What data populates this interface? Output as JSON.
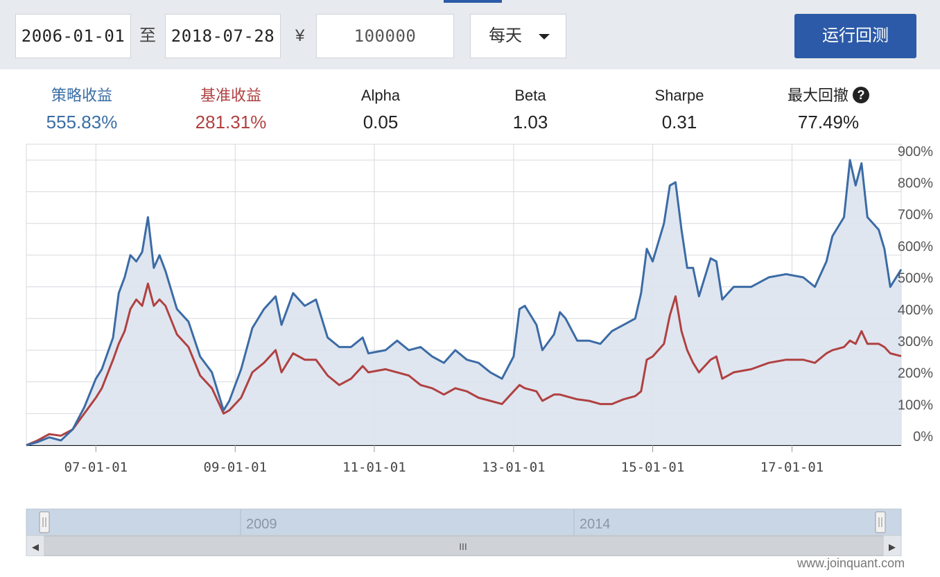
{
  "toolbar": {
    "start_date": "2006-01-01",
    "to_label": "至",
    "end_date": "2018-07-28",
    "currency_symbol": "¥",
    "capital": "100000",
    "frequency": "每天",
    "run_label": "运行回测"
  },
  "stats": [
    {
      "label": "策略收益",
      "value": "555.83%",
      "color": "#3a6ea5"
    },
    {
      "label": "基准收益",
      "value": "281.31%",
      "color": "#b04141"
    },
    {
      "label": "Alpha",
      "value": "0.05",
      "color": "#222222"
    },
    {
      "label": "Beta",
      "value": "1.03",
      "color": "#222222"
    },
    {
      "label": "Sharpe",
      "value": "0.31",
      "color": "#222222"
    },
    {
      "label": "最大回撤",
      "value": "77.49%",
      "color": "#222222"
    }
  ],
  "help_icon": "help-icon",
  "chart_data": {
    "type": "area",
    "x_range": [
      "2006-01-01",
      "2018-07-28"
    ],
    "x_ticks": [
      "07-01-01",
      "09-01-01",
      "11-01-01",
      "13-01-01",
      "15-01-01",
      "17-01-01"
    ],
    "y_ticks": [
      "0%",
      "100%",
      "200%",
      "300%",
      "400%",
      "500%",
      "600%",
      "700%",
      "800%",
      "900%"
    ],
    "ylim": [
      0,
      950
    ],
    "grid": true,
    "colors": {
      "strategy": "#3b6ba5",
      "benchmark": "#b04141",
      "fill": "#dce3ee"
    },
    "series": [
      {
        "key": "strategy",
        "points": [
          [
            "2006-01-01",
            0
          ],
          [
            "2006-03-01",
            10
          ],
          [
            "2006-05-01",
            25
          ],
          [
            "2006-07-01",
            15
          ],
          [
            "2006-09-01",
            50
          ],
          [
            "2006-11-01",
            120
          ],
          [
            "2007-01-01",
            210
          ],
          [
            "2007-02-01",
            240
          ],
          [
            "2007-04-01",
            340
          ],
          [
            "2007-05-01",
            480
          ],
          [
            "2007-06-01",
            530
          ],
          [
            "2007-07-01",
            600
          ],
          [
            "2007-08-01",
            580
          ],
          [
            "2007-09-01",
            610
          ],
          [
            "2007-10-01",
            720
          ],
          [
            "2007-11-01",
            560
          ],
          [
            "2007-12-01",
            600
          ],
          [
            "2008-01-01",
            550
          ],
          [
            "2008-03-01",
            430
          ],
          [
            "2008-05-01",
            390
          ],
          [
            "2008-07-01",
            280
          ],
          [
            "2008-09-01",
            230
          ],
          [
            "2008-11-01",
            110
          ],
          [
            "2008-12-01",
            140
          ],
          [
            "2009-02-01",
            240
          ],
          [
            "2009-04-01",
            370
          ],
          [
            "2009-06-01",
            430
          ],
          [
            "2009-08-01",
            470
          ],
          [
            "2009-09-01",
            380
          ],
          [
            "2009-11-01",
            480
          ],
          [
            "2010-01-01",
            440
          ],
          [
            "2010-03-01",
            460
          ],
          [
            "2010-05-01",
            340
          ],
          [
            "2010-07-01",
            310
          ],
          [
            "2010-09-01",
            310
          ],
          [
            "2010-11-01",
            340
          ],
          [
            "2010-12-01",
            290
          ],
          [
            "2011-03-01",
            300
          ],
          [
            "2011-05-01",
            330
          ],
          [
            "2011-07-01",
            300
          ],
          [
            "2011-09-01",
            310
          ],
          [
            "2011-11-01",
            280
          ],
          [
            "2012-01-01",
            260
          ],
          [
            "2012-03-01",
            300
          ],
          [
            "2012-05-01",
            270
          ],
          [
            "2012-07-01",
            260
          ],
          [
            "2012-09-01",
            230
          ],
          [
            "2012-11-01",
            210
          ],
          [
            "2013-01-01",
            280
          ],
          [
            "2013-02-01",
            430
          ],
          [
            "2013-03-01",
            440
          ],
          [
            "2013-05-01",
            380
          ],
          [
            "2013-06-01",
            300
          ],
          [
            "2013-08-01",
            350
          ],
          [
            "2013-09-01",
            420
          ],
          [
            "2013-10-01",
            400
          ],
          [
            "2013-12-01",
            330
          ],
          [
            "2014-02-01",
            330
          ],
          [
            "2014-04-01",
            320
          ],
          [
            "2014-06-01",
            360
          ],
          [
            "2014-08-01",
            380
          ],
          [
            "2014-10-01",
            400
          ],
          [
            "2014-11-01",
            480
          ],
          [
            "2014-12-01",
            620
          ],
          [
            "2015-01-01",
            580
          ],
          [
            "2015-03-01",
            700
          ],
          [
            "2015-04-01",
            820
          ],
          [
            "2015-05-01",
            830
          ],
          [
            "2015-06-01",
            680
          ],
          [
            "2015-07-01",
            560
          ],
          [
            "2015-08-01",
            560
          ],
          [
            "2015-09-01",
            470
          ],
          [
            "2015-11-01",
            590
          ],
          [
            "2015-12-01",
            580
          ],
          [
            "2016-01-01",
            460
          ],
          [
            "2016-03-01",
            500
          ],
          [
            "2016-06-01",
            500
          ],
          [
            "2016-09-01",
            530
          ],
          [
            "2016-12-01",
            540
          ],
          [
            "2017-03-01",
            530
          ],
          [
            "2017-05-01",
            500
          ],
          [
            "2017-07-01",
            580
          ],
          [
            "2017-08-01",
            660
          ],
          [
            "2017-10-01",
            720
          ],
          [
            "2017-11-01",
            900
          ],
          [
            "2017-12-01",
            820
          ],
          [
            "2018-01-01",
            890
          ],
          [
            "2018-02-01",
            720
          ],
          [
            "2018-04-01",
            680
          ],
          [
            "2018-05-01",
            620
          ],
          [
            "2018-06-01",
            500
          ],
          [
            "2018-07-28",
            555
          ]
        ]
      },
      {
        "key": "benchmark",
        "points": [
          [
            "2006-01-01",
            0
          ],
          [
            "2006-03-01",
            15
          ],
          [
            "2006-05-01",
            35
          ],
          [
            "2006-07-01",
            30
          ],
          [
            "2006-09-01",
            50
          ],
          [
            "2006-11-01",
            100
          ],
          [
            "2007-01-01",
            150
          ],
          [
            "2007-02-01",
            180
          ],
          [
            "2007-04-01",
            270
          ],
          [
            "2007-05-01",
            320
          ],
          [
            "2007-06-01",
            360
          ],
          [
            "2007-07-01",
            430
          ],
          [
            "2007-08-01",
            460
          ],
          [
            "2007-09-01",
            440
          ],
          [
            "2007-10-01",
            510
          ],
          [
            "2007-11-01",
            440
          ],
          [
            "2007-12-01",
            460
          ],
          [
            "2008-01-01",
            440
          ],
          [
            "2008-03-01",
            350
          ],
          [
            "2008-05-01",
            310
          ],
          [
            "2008-07-01",
            220
          ],
          [
            "2008-09-01",
            180
          ],
          [
            "2008-11-01",
            100
          ],
          [
            "2008-12-01",
            110
          ],
          [
            "2009-02-01",
            150
          ],
          [
            "2009-04-01",
            230
          ],
          [
            "2009-06-01",
            260
          ],
          [
            "2009-08-01",
            300
          ],
          [
            "2009-09-01",
            230
          ],
          [
            "2009-11-01",
            290
          ],
          [
            "2010-01-01",
            270
          ],
          [
            "2010-03-01",
            270
          ],
          [
            "2010-05-01",
            220
          ],
          [
            "2010-07-01",
            190
          ],
          [
            "2010-09-01",
            210
          ],
          [
            "2010-11-01",
            250
          ],
          [
            "2010-12-01",
            230
          ],
          [
            "2011-03-01",
            240
          ],
          [
            "2011-05-01",
            230
          ],
          [
            "2011-07-01",
            220
          ],
          [
            "2011-09-01",
            190
          ],
          [
            "2011-11-01",
            180
          ],
          [
            "2012-01-01",
            160
          ],
          [
            "2012-03-01",
            180
          ],
          [
            "2012-05-01",
            170
          ],
          [
            "2012-07-01",
            150
          ],
          [
            "2012-09-01",
            140
          ],
          [
            "2012-11-01",
            130
          ],
          [
            "2013-01-01",
            170
          ],
          [
            "2013-02-01",
            190
          ],
          [
            "2013-03-01",
            180
          ],
          [
            "2013-05-01",
            170
          ],
          [
            "2013-06-01",
            140
          ],
          [
            "2013-08-01",
            160
          ],
          [
            "2013-09-01",
            160
          ],
          [
            "2013-10-01",
            155
          ],
          [
            "2013-12-01",
            145
          ],
          [
            "2014-02-01",
            140
          ],
          [
            "2014-04-01",
            130
          ],
          [
            "2014-06-01",
            130
          ],
          [
            "2014-08-01",
            145
          ],
          [
            "2014-10-01",
            155
          ],
          [
            "2014-11-01",
            170
          ],
          [
            "2014-12-01",
            270
          ],
          [
            "2015-01-01",
            280
          ],
          [
            "2015-03-01",
            320
          ],
          [
            "2015-04-01",
            410
          ],
          [
            "2015-05-01",
            470
          ],
          [
            "2015-06-01",
            360
          ],
          [
            "2015-07-01",
            300
          ],
          [
            "2015-08-01",
            260
          ],
          [
            "2015-09-01",
            230
          ],
          [
            "2015-11-01",
            270
          ],
          [
            "2015-12-01",
            280
          ],
          [
            "2016-01-01",
            210
          ],
          [
            "2016-03-01",
            230
          ],
          [
            "2016-06-01",
            240
          ],
          [
            "2016-09-01",
            260
          ],
          [
            "2016-12-01",
            270
          ],
          [
            "2017-03-01",
            270
          ],
          [
            "2017-05-01",
            260
          ],
          [
            "2017-07-01",
            290
          ],
          [
            "2017-08-01",
            300
          ],
          [
            "2017-10-01",
            310
          ],
          [
            "2017-11-01",
            330
          ],
          [
            "2017-12-01",
            320
          ],
          [
            "2018-01-01",
            360
          ],
          [
            "2018-02-01",
            320
          ],
          [
            "2018-04-01",
            320
          ],
          [
            "2018-05-01",
            310
          ],
          [
            "2018-06-01",
            290
          ],
          [
            "2018-07-28",
            281
          ]
        ]
      }
    ]
  },
  "navigator": {
    "labels": [
      "2009",
      "2014"
    ],
    "scrollbar_grip": "III",
    "left_arrow": "◀",
    "right_arrow": "▶"
  },
  "watermark": "www.joinquant.com"
}
